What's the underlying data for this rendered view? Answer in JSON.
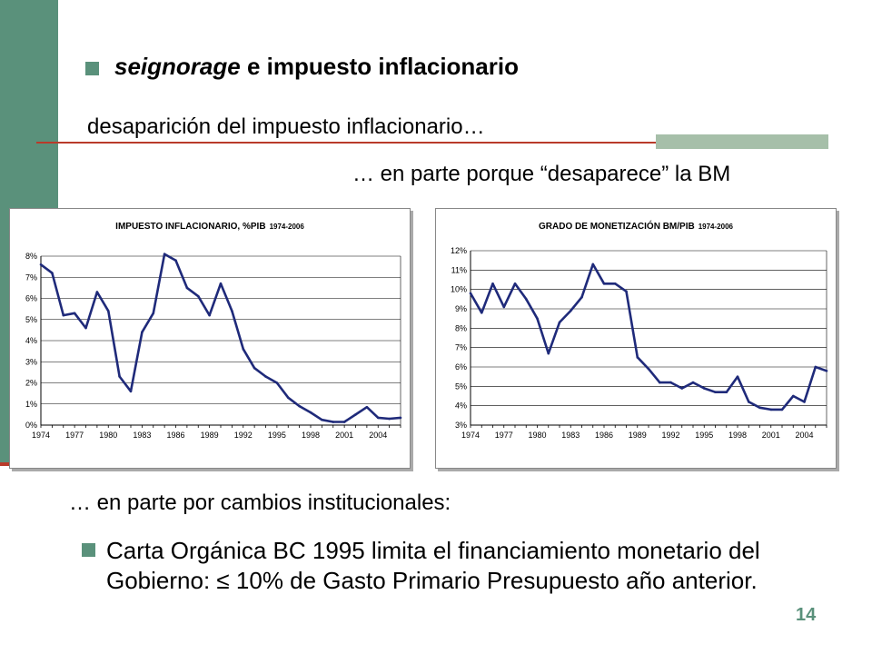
{
  "slide": {
    "title_em": "seignorage",
    "title_rest": " e impuesto inflacionario",
    "line1": "desaparición del impuesto inflacionario…",
    "line2": "… en parte porque “desaparece” la BM",
    "line3": "… en parte por cambios institucionales:",
    "bullet_text": "Carta Orgánica BC 1995 limita el financiamiento monetario del Gobierno:  ≤  10% de Gasto Primario Presupuesto año anterior.",
    "page_number": "14",
    "accent_color": "#5a917b",
    "rule_color": "#b93a2a",
    "line_color": "#1f2a7a"
  },
  "chart_data": [
    {
      "type": "line",
      "title": "IMPUESTO INFLACIONARIO, %PIB",
      "title_small": "1974-2006",
      "x_tick_labels": [
        "1974",
        "1977",
        "1980",
        "1983",
        "1986",
        "1989",
        "1992",
        "1995",
        "1998",
        "2001",
        "2004"
      ],
      "y_tick_labels": [
        "0%",
        "1%",
        "2%",
        "3%",
        "4%",
        "5%",
        "6%",
        "7%",
        "8%"
      ],
      "xlim": [
        1974,
        2006
      ],
      "ylim": [
        0,
        8
      ],
      "grid": true,
      "x": [
        1974,
        1975,
        1976,
        1977,
        1978,
        1979,
        1980,
        1981,
        1982,
        1983,
        1984,
        1985,
        1986,
        1987,
        1988,
        1989,
        1990,
        1991,
        1992,
        1993,
        1994,
        1995,
        1996,
        1997,
        1998,
        1999,
        2000,
        2001,
        2002,
        2003,
        2004,
        2005,
        2006
      ],
      "values": [
        7.6,
        7.2,
        5.2,
        5.3,
        4.6,
        6.3,
        5.4,
        2.3,
        1.6,
        4.4,
        5.3,
        8.1,
        7.8,
        6.5,
        6.1,
        5.2,
        6.7,
        5.4,
        3.6,
        2.7,
        2.3,
        2.0,
        1.3,
        0.9,
        0.6,
        0.25,
        0.15,
        0.15,
        0.5,
        0.85,
        0.35,
        0.3,
        0.35
      ]
    },
    {
      "type": "line",
      "title": "GRADO DE MONETIZACIÓN BM/PIB",
      "title_small": "1974-2006",
      "x_tick_labels": [
        "1974",
        "1977",
        "1980",
        "1983",
        "1986",
        "1989",
        "1992",
        "1995",
        "1998",
        "2001",
        "2004"
      ],
      "y_tick_labels": [
        "3%",
        "4%",
        "5%",
        "6%",
        "7%",
        "8%",
        "9%",
        "10%",
        "11%",
        "12%"
      ],
      "xlim": [
        1974,
        2006
      ],
      "ylim": [
        3,
        12
      ],
      "grid": true,
      "x": [
        1974,
        1975,
        1976,
        1977,
        1978,
        1979,
        1980,
        1981,
        1982,
        1983,
        1984,
        1985,
        1986,
        1987,
        1988,
        1989,
        1990,
        1991,
        1992,
        1993,
        1994,
        1995,
        1996,
        1997,
        1998,
        1999,
        2000,
        2001,
        2002,
        2003,
        2004,
        2005,
        2006
      ],
      "values": [
        9.8,
        8.8,
        10.3,
        9.1,
        10.3,
        9.5,
        8.5,
        6.7,
        8.3,
        8.9,
        9.6,
        11.3,
        10.3,
        10.3,
        9.9,
        6.5,
        5.9,
        5.2,
        5.2,
        4.9,
        5.2,
        4.9,
        4.7,
        4.7,
        5.5,
        4.2,
        3.9,
        3.8,
        3.8,
        4.5,
        4.2,
        6.0,
        5.8
      ]
    }
  ]
}
